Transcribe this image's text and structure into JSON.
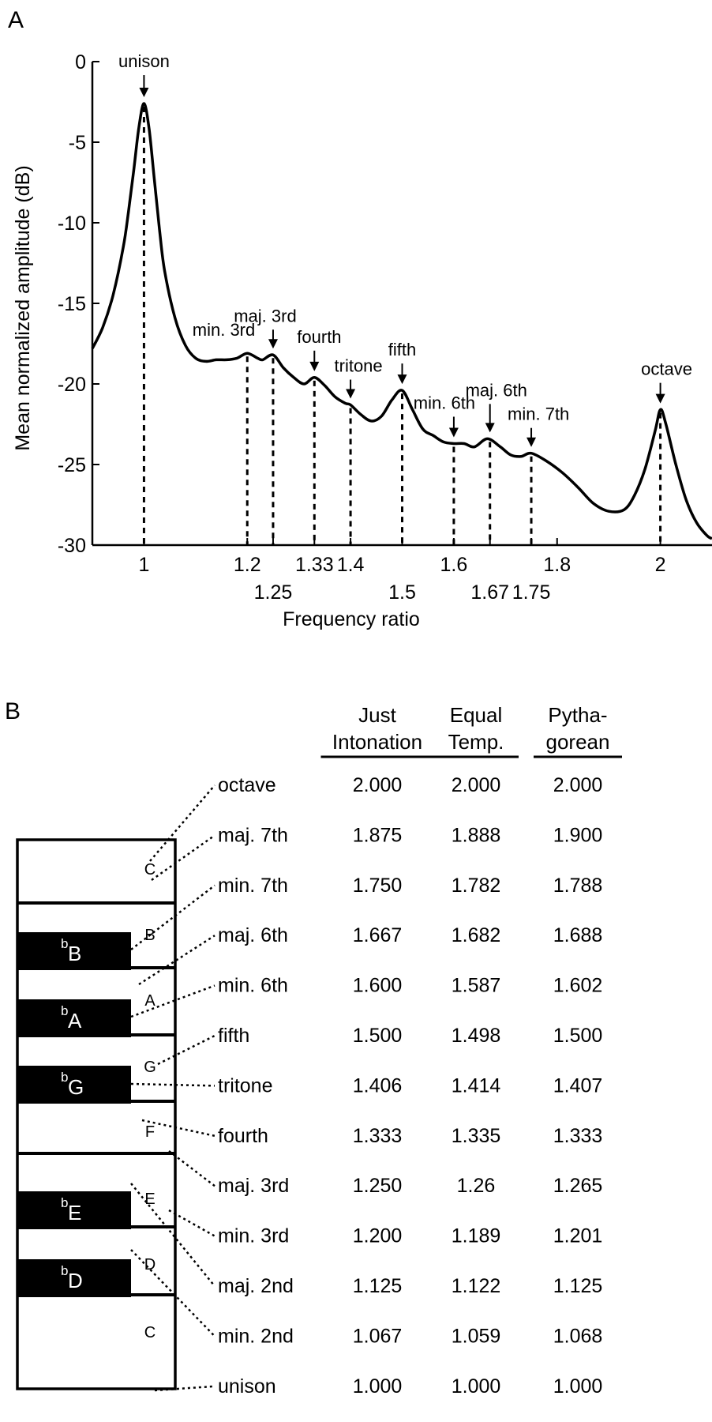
{
  "panel_a": {
    "label": "A",
    "chart_data": {
      "type": "line",
      "ylabel": "Mean normalized amplitude (dB)",
      "xlabel": "Frequency ratio",
      "xlim": [
        0.9,
        2.1
      ],
      "ylim": [
        -30,
        0
      ],
      "yticks": [
        0,
        -5,
        -10,
        -15,
        -20,
        -25,
        -30
      ],
      "xticks_row1": [
        1,
        1.2,
        1.33,
        1.4,
        1.6,
        1.8,
        2
      ],
      "xticks_row1_labels": [
        "1",
        "1.2",
        "1.33",
        "1.4",
        "1.6",
        "1.8",
        "2"
      ],
      "xticks_row2": [
        1.25,
        1.5,
        1.67,
        1.75
      ],
      "xticks_row2_labels": [
        "1.25",
        "1.5",
        "1.67",
        "1.75"
      ],
      "series": [
        {
          "x": [
            0.9,
            0.92,
            0.94,
            0.96,
            0.97,
            0.98,
            0.99,
            1.0,
            1.01,
            1.02,
            1.03,
            1.04,
            1.06,
            1.08,
            1.1,
            1.12,
            1.14,
            1.16,
            1.18,
            1.2,
            1.22,
            1.23,
            1.25,
            1.27,
            1.29,
            1.31,
            1.33,
            1.35,
            1.37,
            1.39,
            1.4,
            1.42,
            1.44,
            1.46,
            1.48,
            1.5,
            1.52,
            1.54,
            1.56,
            1.58,
            1.6,
            1.62,
            1.64,
            1.665,
            1.69,
            1.71,
            1.73,
            1.75,
            1.78,
            1.81,
            1.84,
            1.87,
            1.9,
            1.93,
            1.95,
            1.97,
            1.99,
            2.0,
            2.01,
            2.03,
            2.05,
            2.07,
            2.09,
            2.1
          ],
          "y": [
            -17.8,
            -16.5,
            -14.5,
            -11.5,
            -9.3,
            -6.8,
            -4.1,
            -2.6,
            -4.2,
            -7.3,
            -10.4,
            -13.0,
            -15.9,
            -17.6,
            -18.4,
            -18.6,
            -18.5,
            -18.5,
            -18.4,
            -18.1,
            -18.4,
            -18.5,
            -18.2,
            -19.0,
            -19.6,
            -20.0,
            -19.6,
            -20.1,
            -20.8,
            -21.2,
            -21.3,
            -21.9,
            -22.3,
            -22.0,
            -21.0,
            -20.4,
            -21.6,
            -22.8,
            -23.2,
            -23.6,
            -23.7,
            -23.7,
            -23.9,
            -23.4,
            -23.9,
            -24.4,
            -24.5,
            -24.3,
            -24.8,
            -25.5,
            -26.4,
            -27.4,
            -27.9,
            -27.8,
            -26.9,
            -25.3,
            -22.9,
            -21.6,
            -22.4,
            -25.0,
            -27.2,
            -28.6,
            -29.4,
            -29.6
          ]
        }
      ],
      "peaks": [
        {
          "name": "unison",
          "x": 1.0,
          "y": -2.6
        },
        {
          "name": "min. 3rd",
          "x": 1.2,
          "y": -18.1
        },
        {
          "name": "maj. 3rd",
          "x": 1.25,
          "y": -18.2
        },
        {
          "name": "fourth",
          "x": 1.33,
          "y": -19.6
        },
        {
          "name": "tritone",
          "x": 1.4,
          "y": -21.3
        },
        {
          "name": "fifth",
          "x": 1.5,
          "y": -20.4
        },
        {
          "name": "min. 6th",
          "x": 1.6,
          "y": -23.7
        },
        {
          "name": "maj. 6th",
          "x": 1.67,
          "y": -23.4
        },
        {
          "name": "min. 7th",
          "x": 1.75,
          "y": -24.3
        },
        {
          "name": "octave",
          "x": 2.0,
          "y": -21.6
        }
      ]
    }
  },
  "panel_b": {
    "label": "B",
    "table": {
      "type": "table",
      "columns": [
        {
          "line1": "Just",
          "line2": "Intonation"
        },
        {
          "line1": "Equal",
          "line2": "Temp."
        },
        {
          "line1": "Pytha-",
          "line2": "gorean"
        }
      ],
      "rows": [
        {
          "interval": "octave",
          "values": [
            "2.000",
            "2.000",
            "2.000"
          ]
        },
        {
          "interval": "maj. 7th",
          "values": [
            "1.875",
            "1.888",
            "1.900"
          ]
        },
        {
          "interval": "min. 7th",
          "values": [
            "1.750",
            "1.782",
            "1.788"
          ]
        },
        {
          "interval": "maj. 6th",
          "values": [
            "1.667",
            "1.682",
            "1.688"
          ]
        },
        {
          "interval": "min. 6th",
          "values": [
            "1.600",
            "1.587",
            "1.602"
          ]
        },
        {
          "interval": "fifth",
          "values": [
            "1.500",
            "1.498",
            "1.500"
          ]
        },
        {
          "interval": "tritone",
          "values": [
            "1.406",
            "1.414",
            "1.407"
          ]
        },
        {
          "interval": "fourth",
          "values": [
            "1.333",
            "1.335",
            "1.333"
          ]
        },
        {
          "interval": "maj. 3rd",
          "values": [
            "1.250",
            "1.26",
            "1.265"
          ]
        },
        {
          "interval": "min. 3rd",
          "values": [
            "1.200",
            "1.189",
            "1.201"
          ]
        },
        {
          "interval": "maj. 2nd",
          "values": [
            "1.125",
            "1.122",
            "1.125"
          ]
        },
        {
          "interval": "min. 2nd",
          "values": [
            "1.067",
            "1.059",
            "1.068"
          ]
        },
        {
          "interval": "unison",
          "values": [
            "1.000",
            "1.000",
            "1.000"
          ]
        }
      ]
    },
    "keyboard": {
      "white_keys": [
        "C",
        "B",
        "A",
        "G",
        "F",
        "E",
        "D",
        "C"
      ],
      "black_keys": [
        {
          "flat": "b",
          "letter": "B"
        },
        {
          "flat": "b",
          "letter": "A"
        },
        {
          "flat": "b",
          "letter": "G"
        },
        {
          "flat": "b",
          "letter": "E"
        },
        {
          "flat": "b",
          "letter": "D"
        }
      ]
    }
  }
}
